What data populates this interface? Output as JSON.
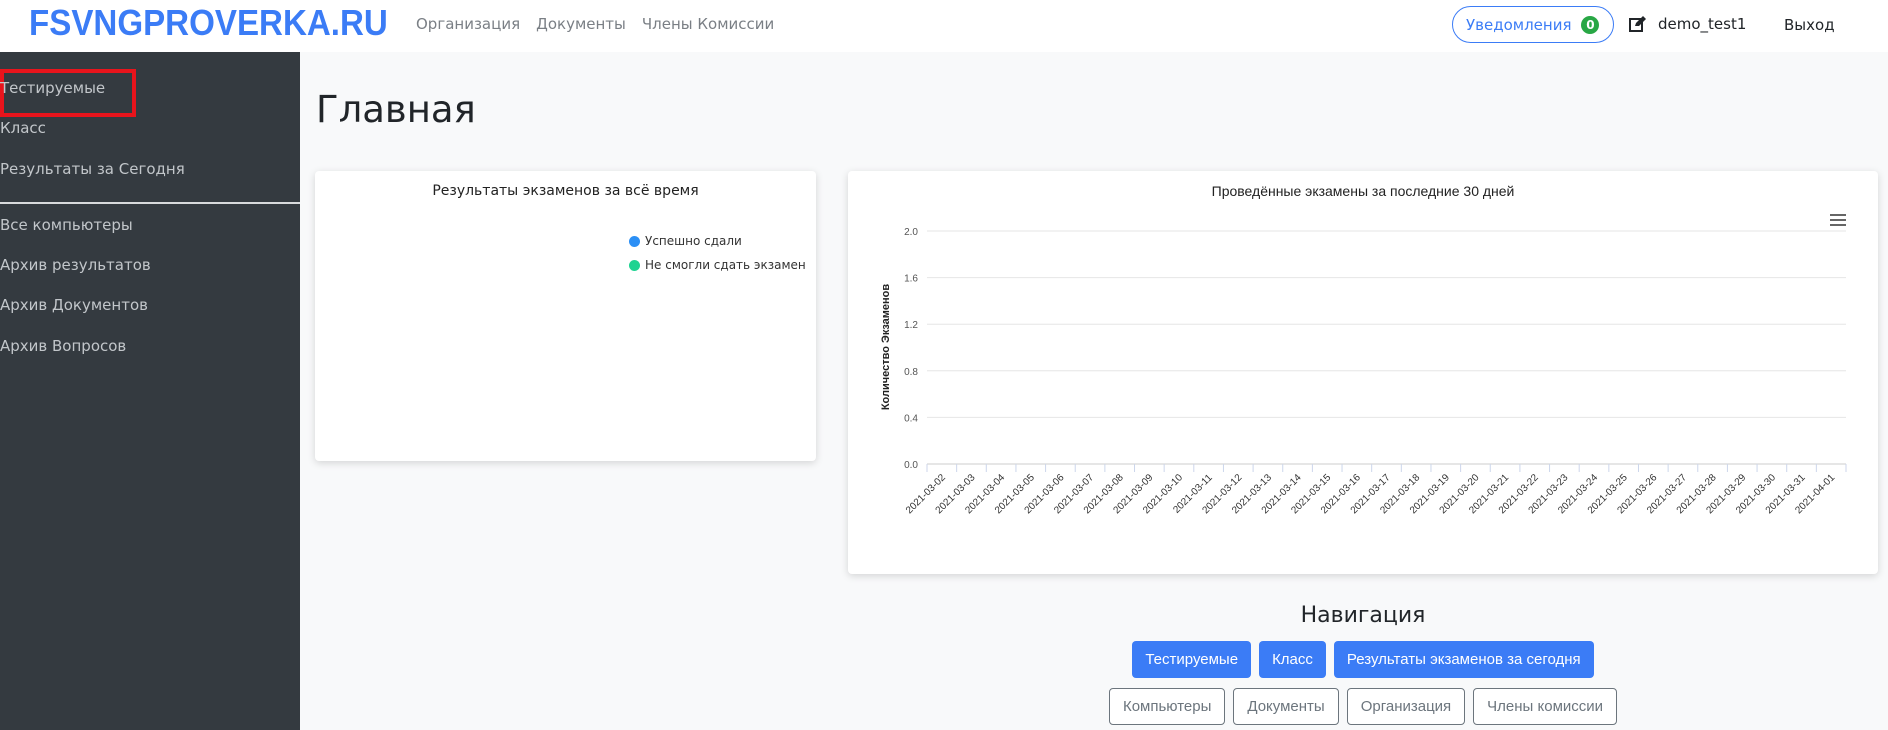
{
  "navbar": {
    "brand": "FSVNGPROVERKA.RU",
    "links": [
      "Организация",
      "Документы",
      "Члены Комиссии"
    ],
    "notifications_label": "Уведомления",
    "notifications_count": "0",
    "username": "demo_test1",
    "logout": "Выход",
    "accent": "#3b7cf6"
  },
  "sidebar": {
    "items": [
      "Тестируемые",
      "Класс",
      "Результаты за Сегодня"
    ],
    "items2": [
      "Все компьютеры",
      "Архив результатов",
      "Архив Документов",
      "Архив Вопросов"
    ],
    "highlighted": "Тестируемые"
  },
  "page_title": "Главная",
  "pie_card": {
    "title": "Результаты экзаменов за всё время",
    "legend": [
      {
        "label": "Успешно сдали",
        "color": "#2b8ff5"
      },
      {
        "label": "Не смогли сдать экзамен",
        "color": "#1ed391"
      }
    ]
  },
  "chart_data": {
    "type": "line",
    "title": "Проведённые экзамены за последние 30 дней",
    "ylabel": "Количество Экзаменов",
    "ylim": [
      0,
      2
    ],
    "yticks": [
      "0.0",
      "0.4",
      "0.8",
      "1.2",
      "1.6",
      "2.0"
    ],
    "grid": true,
    "categories": [
      "2021-03-02",
      "2021-03-03",
      "2021-03-04",
      "2021-03-05",
      "2021-03-06",
      "2021-03-07",
      "2021-03-08",
      "2021-03-09",
      "2021-03-10",
      "2021-03-11",
      "2021-03-12",
      "2021-03-13",
      "2021-03-14",
      "2021-03-15",
      "2021-03-16",
      "2021-03-17",
      "2021-03-18",
      "2021-03-19",
      "2021-03-20",
      "2021-03-21",
      "2021-03-22",
      "2021-03-23",
      "2021-03-24",
      "2021-03-25",
      "2021-03-26",
      "2021-03-27",
      "2021-03-28",
      "2021-03-29",
      "2021-03-30",
      "2021-03-31",
      "2021-04-01"
    ],
    "series": []
  },
  "navigation": {
    "heading": "Навигация",
    "primary": [
      "Тестируемые",
      "Класс",
      "Результаты экзаменов за сегодня"
    ],
    "secondary": [
      "Компьютеры",
      "Документы",
      "Организация",
      "Члены комиссии"
    ]
  }
}
